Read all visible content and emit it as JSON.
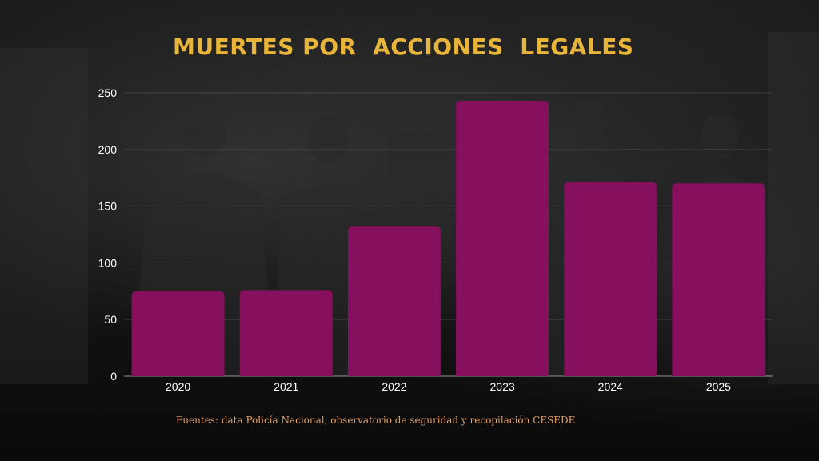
{
  "title": "MUERTES POR  ACCIONES  LEGALES",
  "source": "Fuentes: data Policía Nacional, observatorio de seguridad y recopilación CESEDE",
  "colors": {
    "bar": "#860f5e",
    "title": "#e9b43a",
    "axis_text": "#ffffff",
    "source": "#e3a06a"
  },
  "background_image": "photo-of-crowd-in-street",
  "chart_data": {
    "type": "bar",
    "title": "MUERTES POR  ACCIONES  LEGALES",
    "categories": [
      "2020",
      "2021",
      "2022",
      "2023",
      "2024",
      "2025"
    ],
    "values": [
      75,
      76,
      132,
      243,
      171,
      170
    ],
    "xlabel": "",
    "ylabel": "",
    "ylim": [
      0,
      250
    ],
    "yticks": [
      0,
      50,
      100,
      150,
      200,
      250
    ],
    "grid": true,
    "legend": "none"
  }
}
